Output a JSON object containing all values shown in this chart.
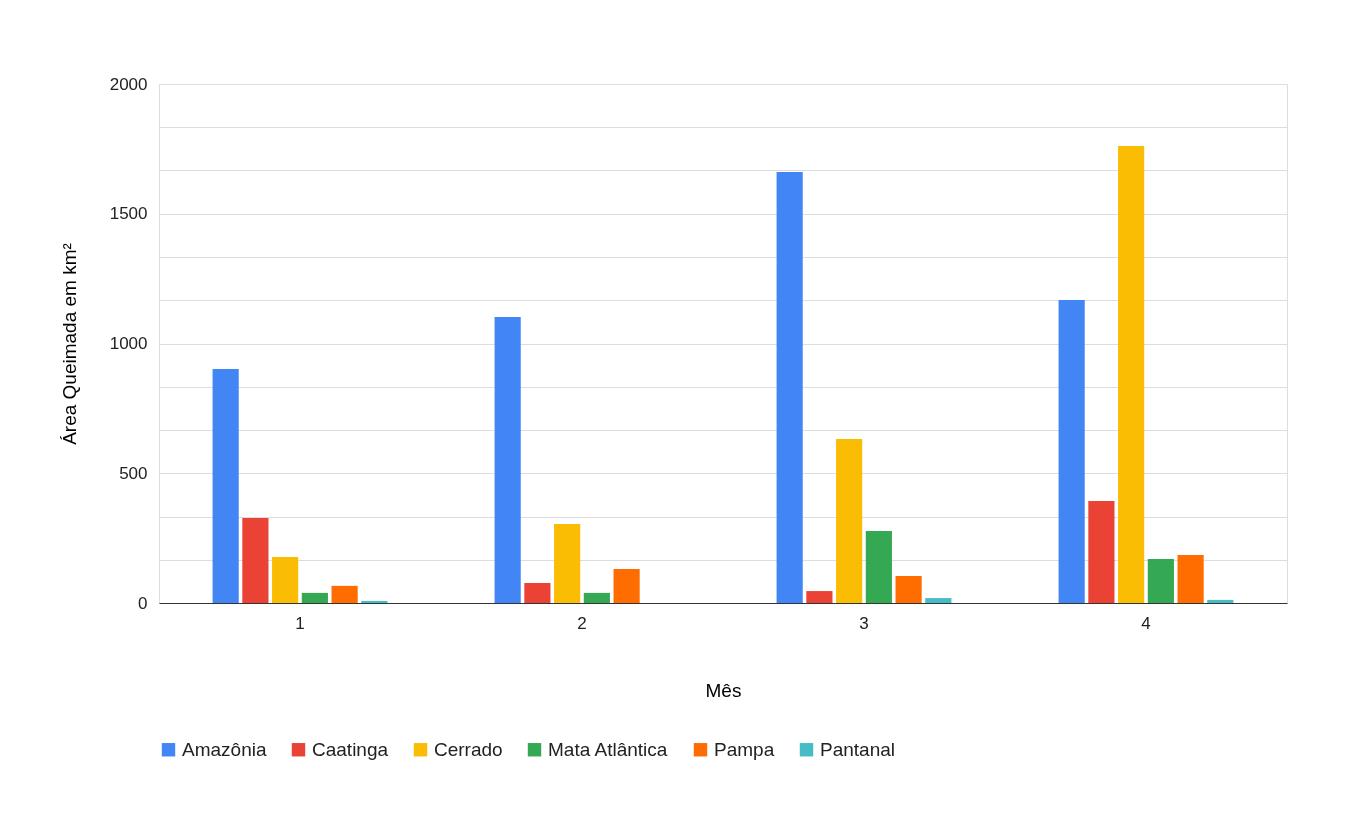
{
  "chart_data": {
    "type": "bar",
    "xlabel": "Mês",
    "ylabel": "Área Queimada em km²",
    "categories": [
      "1",
      "2",
      "3",
      "4"
    ],
    "series": [
      {
        "name": "Amazônia",
        "color": "#4285f4",
        "values": [
          902,
          1102,
          1661,
          1168
        ]
      },
      {
        "name": "Caatinga",
        "color": "#ea4335",
        "values": [
          328,
          77,
          46,
          393
        ]
      },
      {
        "name": "Cerrado",
        "color": "#fbbc04",
        "values": [
          177,
          304,
          632,
          1761
        ]
      },
      {
        "name": "Mata Atlântica",
        "color": "#34a853",
        "values": [
          39,
          39,
          277,
          170
        ]
      },
      {
        "name": "Pampa",
        "color": "#ff6d01",
        "values": [
          66,
          131,
          104,
          185
        ]
      },
      {
        "name": "Pantanal",
        "color": "#46bdc6",
        "values": [
          8,
          0,
          19,
          12
        ]
      }
    ],
    "ylim": [
      0,
      2000
    ],
    "yticks": [
      0,
      {
        "value": 166.667,
        "label": null
      },
      {
        "value": 333.333,
        "label": null
      },
      500,
      {
        "value": 666.667,
        "label": null
      },
      {
        "value": 833.333,
        "label": null
      },
      1000,
      {
        "value": 1166.667,
        "label": null
      },
      {
        "value": 1333.333,
        "label": null
      },
      1500,
      {
        "value": 1666.667,
        "label": null
      },
      {
        "value": 1833.333,
        "label": null
      },
      2000
    ],
    "grid": "y",
    "legend": "bottom"
  }
}
